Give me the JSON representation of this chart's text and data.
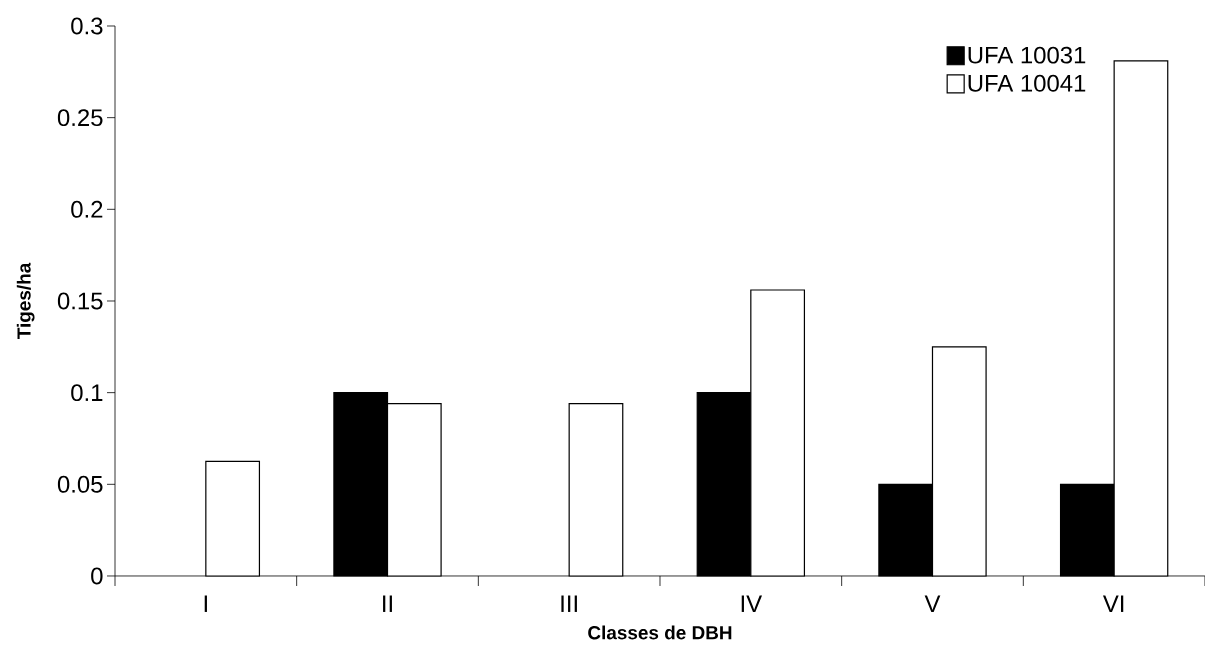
{
  "chart_data": {
    "type": "bar",
    "xlabel": "Classes de DBH",
    "ylabel": "Tiges/ha",
    "categories": [
      "I",
      "II",
      "III",
      "IV",
      "V",
      "VI"
    ],
    "series": [
      {
        "name": "UFA 10031",
        "color": "#000000",
        "values": [
          null,
          0.1,
          null,
          0.1,
          0.05,
          0.05
        ]
      },
      {
        "name": "UFA 10041",
        "color": "#ffffff",
        "values": [
          0.0625,
          0.094,
          0.094,
          0.156,
          0.125,
          0.281
        ]
      }
    ],
    "ylim": [
      0,
      0.3
    ],
    "yticks": [
      0,
      0.05,
      0.1,
      0.15,
      0.2,
      0.25,
      0.3
    ],
    "legend": "top right"
  }
}
